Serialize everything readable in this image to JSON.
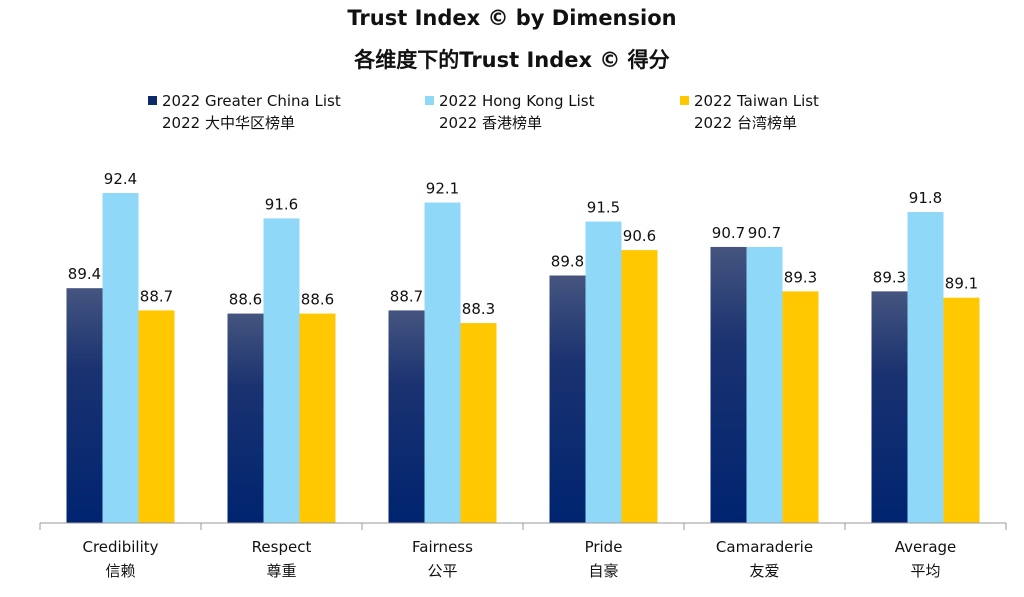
{
  "chart_data": {
    "type": "bar",
    "title": "Trust Index © by Dimension",
    "subtitle": "各维度下的Trust Index © 得分",
    "categories": [
      {
        "en": "Credibility",
        "zh": "信赖"
      },
      {
        "en": "Respect",
        "zh": "尊重"
      },
      {
        "en": "Fairness",
        "zh": "公平"
      },
      {
        "en": "Pride",
        "zh": "自豪"
      },
      {
        "en": "Camaraderie",
        "zh": "友爱"
      },
      {
        "en": "Average",
        "zh": "平均"
      }
    ],
    "series": [
      {
        "name": "2022 Greater China List",
        "name_zh": "2022 大中华区榜单",
        "color": "#0d2a6b",
        "values": [
          89.4,
          88.6,
          88.7,
          89.8,
          90.7,
          89.3
        ]
      },
      {
        "name": "2022 Hong Kong List",
        "name_zh": "2022 香港榜单",
        "color": "#8fd8f7",
        "values": [
          92.4,
          91.6,
          92.1,
          91.5,
          90.7,
          91.8
        ]
      },
      {
        "name": "2022 Taiwan List",
        "name_zh": "2022 台湾榜单",
        "color": "#ffc800",
        "values": [
          88.7,
          88.6,
          88.3,
          90.6,
          89.3,
          89.1
        ]
      }
    ],
    "ylim": [
      82,
      95
    ],
    "grid": false,
    "legend_position": "top"
  }
}
